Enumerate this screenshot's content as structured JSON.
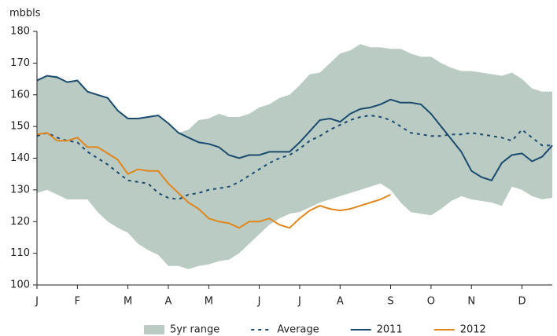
{
  "chart_data": {
    "type": "line",
    "y_label": "mbbls",
    "categories": [
      "J",
      null,
      null,
      null,
      "F",
      null,
      null,
      null,
      null,
      "M",
      null,
      null,
      null,
      "A",
      null,
      null,
      null,
      "M",
      null,
      null,
      null,
      null,
      "J",
      null,
      null,
      null,
      "J",
      null,
      null,
      null,
      "A",
      null,
      null,
      null,
      null,
      "S",
      null,
      null,
      null,
      "O",
      null,
      null,
      null,
      "N",
      null,
      null,
      null,
      null,
      "D",
      null,
      null,
      null
    ],
    "ylim": [
      100,
      180
    ],
    "yticks": [
      100,
      110,
      120,
      130,
      140,
      150,
      160,
      170,
      180
    ],
    "legend": "bottom",
    "series": [
      {
        "name": "5yr range",
        "color": "#b9cbc3",
        "style": "band",
        "high": [
          165,
          166,
          166,
          164,
          164.5,
          161,
          160,
          159,
          155,
          152.5,
          152.5,
          153,
          153.5,
          151,
          148,
          149,
          152,
          152.5,
          154,
          153,
          153,
          154,
          156,
          157,
          159,
          160,
          163,
          166.5,
          167,
          170,
          173,
          174,
          176,
          175,
          175,
          174.5,
          174.5,
          173,
          172,
          172,
          170,
          168.5,
          167.5,
          167.5,
          167,
          166.5,
          166,
          167,
          165,
          162,
          161,
          161
        ],
        "low": [
          129,
          130,
          128.5,
          127,
          127,
          127,
          123,
          120,
          118,
          116.5,
          113,
          111,
          109.5,
          106,
          106,
          105,
          106,
          106.5,
          107.5,
          108,
          110,
          113,
          116,
          119,
          121,
          122.5,
          123,
          124.5,
          126,
          127,
          128,
          129,
          130,
          131,
          132,
          130,
          126,
          123,
          122.5,
          122,
          124,
          126.5,
          128,
          127,
          126.5,
          126,
          125,
          131,
          130,
          128,
          127,
          127.5
        ]
      },
      {
        "name": "Average",
        "color": "#1a4a6e",
        "style": "dashed",
        "values": [
          147,
          148,
          146.5,
          145.5,
          145,
          142,
          140,
          138,
          135.5,
          133,
          132.5,
          132,
          129,
          127.5,
          127,
          128.5,
          129,
          130,
          130.5,
          131,
          132.5,
          134.5,
          136.5,
          138.5,
          140,
          141,
          143,
          145.5,
          147,
          149,
          150.5,
          152,
          153,
          153.5,
          153,
          152,
          150,
          148,
          147.5,
          147,
          147,
          147.5,
          147.5,
          148,
          147.5,
          147,
          146.5,
          145.5,
          149,
          146.5,
          144,
          144
        ]
      },
      {
        "name": "2011",
        "color": "#1a4a6e",
        "style": "solid",
        "values": [
          164.5,
          166,
          165.5,
          164,
          164.5,
          161,
          160,
          159,
          155,
          152.5,
          152.5,
          153,
          153.5,
          151,
          148,
          146.5,
          145,
          144.5,
          143.5,
          141,
          140,
          141,
          141,
          142,
          142,
          142,
          145,
          148.5,
          152,
          152.5,
          151.5,
          154,
          155.5,
          156,
          157,
          158.5,
          157.5,
          157.5,
          157,
          154,
          150,
          146,
          142,
          136,
          134,
          133,
          138.5,
          141,
          141.5,
          139,
          140.5,
          144
        ]
      },
      {
        "name": "2012",
        "color": "#e0861a",
        "style": "solid",
        "values": [
          147.5,
          148,
          145.5,
          145.5,
          146.5,
          143.5,
          143.5,
          141.5,
          139.5,
          135,
          136.5,
          136,
          136,
          132,
          129,
          126,
          124,
          121,
          120,
          119.5,
          118,
          120,
          120,
          121,
          119,
          118,
          121,
          123.5,
          125,
          124,
          123.5,
          124,
          125,
          126,
          127,
          128.5,
          null,
          null,
          null,
          null,
          null,
          null,
          null,
          null,
          null,
          null,
          null,
          null,
          null,
          null,
          null,
          null
        ]
      }
    ]
  }
}
